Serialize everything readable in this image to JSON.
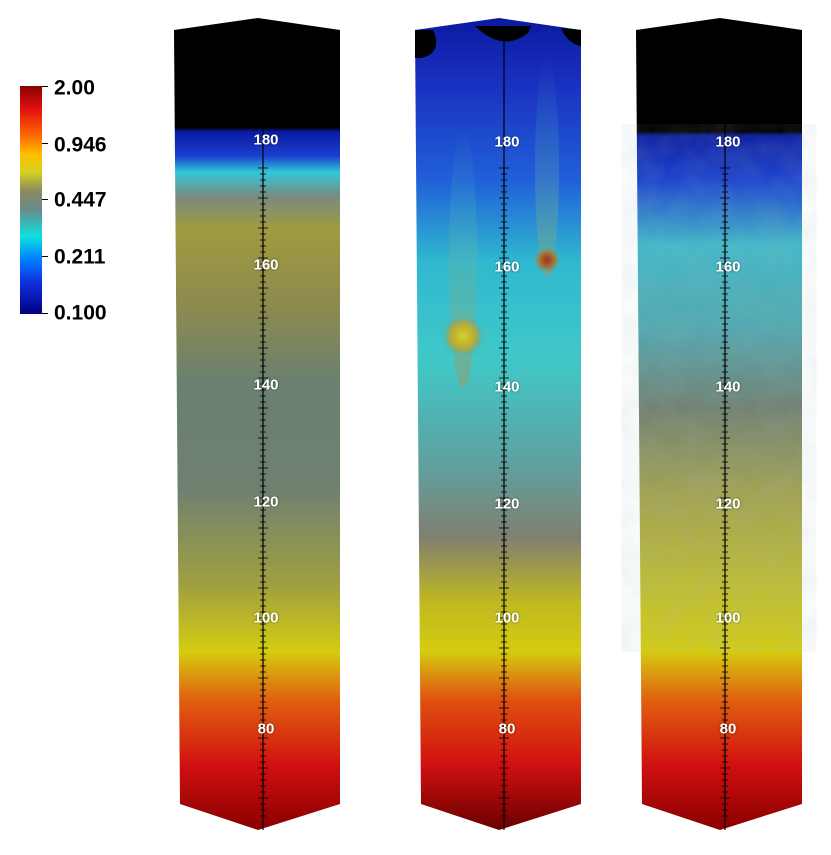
{
  "legend": {
    "labels": [
      "2.00",
      "0.946",
      "0.447",
      "0.211",
      "0.100"
    ]
  },
  "columns": [
    {
      "axis_ticks": [
        "180",
        "160",
        "140",
        "120",
        "100",
        "80"
      ]
    },
    {
      "axis_ticks": [
        "180",
        "160",
        "140",
        "120",
        "100",
        "80"
      ]
    },
    {
      "axis_ticks": [
        "180",
        "160",
        "140",
        "120",
        "100",
        "80"
      ]
    }
  ],
  "colors": {
    "top_cap": "#000000",
    "deep_blue": "#0a1a9a",
    "cyan": "#30c8d8",
    "olive": "#9a9a30",
    "yellow": "#d0c810",
    "red": "#cc1010",
    "dark_red": "#7a0000"
  }
}
